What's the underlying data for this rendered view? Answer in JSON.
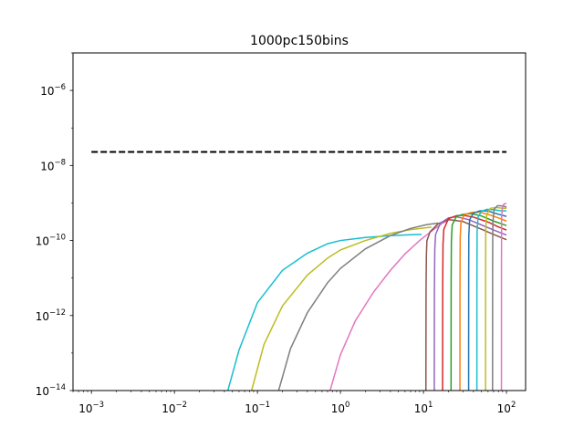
{
  "chart_data": {
    "type": "line",
    "title": "1000pc150bins",
    "xlabel": "",
    "ylabel": "",
    "xscale": "log",
    "yscale": "log",
    "xlim": [
      0.0006,
      170
    ],
    "ylim": [
      1e-14,
      1e-05
    ],
    "x_ticks": [
      {
        "value": 0.001,
        "base": "10",
        "exp": "−3"
      },
      {
        "value": 0.01,
        "base": "10",
        "exp": "−2"
      },
      {
        "value": 0.1,
        "base": "10",
        "exp": "−1"
      },
      {
        "value": 1,
        "base": "10",
        "exp": "0"
      },
      {
        "value": 10,
        "base": "10",
        "exp": "1"
      },
      {
        "value": 100,
        "base": "10",
        "exp": "2"
      }
    ],
    "y_ticks": [
      {
        "value": 1e-14,
        "base": "10",
        "exp": "−14"
      },
      {
        "value": 1e-12,
        "base": "10",
        "exp": "−12"
      },
      {
        "value": 1e-10,
        "base": "10",
        "exp": "−10"
      },
      {
        "value": 1e-08,
        "base": "10",
        "exp": "−8"
      },
      {
        "value": 1e-06,
        "base": "10",
        "exp": "−6"
      }
    ],
    "grid": false,
    "legend": "none",
    "reference_line": {
      "x": [
        0.001,
        100
      ],
      "y": [
        2.3e-08,
        2.3e-08
      ],
      "color": "#000000",
      "style": "dashed"
    },
    "series": [
      {
        "color": "#17becf",
        "points": [
          [
            0.044,
            1e-14
          ],
          [
            0.06,
            1.2e-13
          ],
          [
            0.1,
            2.2e-12
          ],
          [
            0.2,
            1.6e-11
          ],
          [
            0.4,
            4.6e-11
          ],
          [
            0.7,
            8.2e-11
          ],
          [
            1,
            1e-10
          ],
          [
            2,
            1.2e-10
          ],
          [
            4,
            1.35e-10
          ],
          [
            7,
            1.42e-10
          ],
          [
            9.5,
            1.45e-10
          ]
        ]
      },
      {
        "color": "#bcbd22",
        "points": [
          [
            0.085,
            1e-14
          ],
          [
            0.12,
            1.7e-13
          ],
          [
            0.2,
            1.8e-12
          ],
          [
            0.4,
            1.2e-11
          ],
          [
            0.7,
            3.4e-11
          ],
          [
            1,
            5.6e-11
          ],
          [
            2,
            1e-10
          ],
          [
            4,
            1.55e-10
          ],
          [
            7,
            1.95e-10
          ],
          [
            11,
            2.2e-10
          ],
          [
            12.5,
            2.28e-10
          ]
        ]
      },
      {
        "color": "#7f7f7f",
        "points": [
          [
            0.18,
            1e-14
          ],
          [
            0.25,
            1.3e-13
          ],
          [
            0.4,
            1.2e-12
          ],
          [
            0.7,
            7.5e-12
          ],
          [
            1,
            1.8e-11
          ],
          [
            2,
            6e-11
          ],
          [
            4,
            1.35e-10
          ],
          [
            7,
            2.1e-10
          ],
          [
            11,
            2.65e-10
          ],
          [
            15,
            2.9e-10
          ]
        ]
      },
      {
        "color": "#e377c2",
        "points": [
          [
            0.75,
            1e-14
          ],
          [
            1,
            9e-14
          ],
          [
            1.5,
            7e-13
          ],
          [
            2.5,
            4.2e-12
          ],
          [
            4,
            1.6e-11
          ],
          [
            6,
            4.4e-11
          ],
          [
            9,
            1e-10
          ],
          [
            13,
            1.9e-10
          ],
          [
            17,
            2.9e-10
          ],
          [
            20,
            3.5e-10
          ]
        ]
      },
      {
        "color": "#8c564b",
        "points": [
          [
            10.7,
            1e-14
          ],
          [
            10.75,
            5e-12
          ],
          [
            10.85,
            4e-11
          ],
          [
            11,
            9.8e-11
          ],
          [
            12,
            1.7e-10
          ],
          [
            15,
            2.8e-10
          ],
          [
            20,
            3.6e-10
          ],
          [
            30,
            3.2e-10
          ],
          [
            50,
            2e-10
          ],
          [
            70,
            1.45e-10
          ],
          [
            100,
            1.05e-10
          ]
        ]
      },
      {
        "color": "#9467bd",
        "points": [
          [
            13.5,
            1e-14
          ],
          [
            13.55,
            5e-12
          ],
          [
            13.7,
            6e-11
          ],
          [
            14,
            1.45e-10
          ],
          [
            16,
            2.9e-10
          ],
          [
            20,
            4e-10
          ],
          [
            25,
            4.3e-10
          ],
          [
            35,
            3.6e-10
          ],
          [
            50,
            2.6e-10
          ],
          [
            70,
            1.9e-10
          ],
          [
            100,
            1.4e-10
          ]
        ]
      },
      {
        "color": "#d62728",
        "points": [
          [
            17,
            1e-14
          ],
          [
            17.05,
            6e-12
          ],
          [
            17.2,
            8e-11
          ],
          [
            17.6,
            2e-10
          ],
          [
            20,
            3.8e-10
          ],
          [
            25,
            4.6e-10
          ],
          [
            30,
            4.7e-10
          ],
          [
            40,
            4.2e-10
          ],
          [
            60,
            3.1e-10
          ],
          [
            80,
            2.3e-10
          ],
          [
            100,
            1.9e-10
          ]
        ]
      },
      {
        "color": "#2ca02c",
        "points": [
          [
            21.5,
            1e-14
          ],
          [
            21.55,
            8e-12
          ],
          [
            21.7,
            1e-10
          ],
          [
            22.2,
            2.6e-10
          ],
          [
            25,
            4.4e-10
          ],
          [
            30,
            5e-10
          ],
          [
            38,
            5.2e-10
          ],
          [
            50,
            4.5e-10
          ],
          [
            70,
            3.3e-10
          ],
          [
            100,
            2.5e-10
          ]
        ]
      },
      {
        "color": "#ff7f0e",
        "points": [
          [
            27.5,
            1e-14
          ],
          [
            27.55,
            9e-12
          ],
          [
            27.7,
            1.2e-10
          ],
          [
            28.3,
            3e-10
          ],
          [
            31,
            4.9e-10
          ],
          [
            38,
            5.6e-10
          ],
          [
            48,
            5.7e-10
          ],
          [
            65,
            4.7e-10
          ],
          [
            85,
            3.8e-10
          ],
          [
            100,
            3.3e-10
          ]
        ]
      },
      {
        "color": "#1f77b4",
        "points": [
          [
            35,
            1e-14
          ],
          [
            35.05,
            1e-11
          ],
          [
            35.2,
            1.4e-10
          ],
          [
            36,
            3.6e-10
          ],
          [
            40,
            5.4e-10
          ],
          [
            48,
            6.2e-10
          ],
          [
            60,
            6.1e-10
          ],
          [
            80,
            5e-10
          ],
          [
            100,
            4.4e-10
          ]
        ]
      },
      {
        "color": "#17becf",
        "points": [
          [
            44,
            1e-14
          ],
          [
            44.05,
            1.2e-11
          ],
          [
            44.3,
            1.8e-10
          ],
          [
            45.5,
            4.2e-10
          ],
          [
            50,
            6e-10
          ],
          [
            58,
            6.8e-10
          ],
          [
            70,
            6.6e-10
          ],
          [
            85,
            6.2e-10
          ],
          [
            100,
            6.2e-10
          ]
        ]
      },
      {
        "color": "#bcbd22",
        "points": [
          [
            56,
            1e-14
          ],
          [
            56.05,
            1.4e-11
          ],
          [
            56.3,
            2.2e-10
          ],
          [
            58,
            5e-10
          ],
          [
            64,
            7.2e-10
          ],
          [
            75,
            7.6e-10
          ],
          [
            90,
            7.2e-10
          ],
          [
            100,
            7.2e-10
          ]
        ]
      },
      {
        "color": "#7f7f7f",
        "points": [
          [
            68,
            1e-14
          ],
          [
            68.1,
            2e-11
          ],
          [
            68.5,
            3e-10
          ],
          [
            71,
            6.8e-10
          ],
          [
            78,
            8.5e-10
          ],
          [
            90,
            8.3e-10
          ],
          [
            100,
            7.8e-10
          ]
        ]
      },
      {
        "color": "#e377c2",
        "points": [
          [
            87,
            1e-14
          ],
          [
            87.1,
            3e-11
          ],
          [
            87.5,
            4.5e-10
          ],
          [
            90,
            8.5e-10
          ],
          [
            95,
            9.6e-10
          ],
          [
            100,
            9.6e-10
          ]
        ]
      }
    ]
  }
}
